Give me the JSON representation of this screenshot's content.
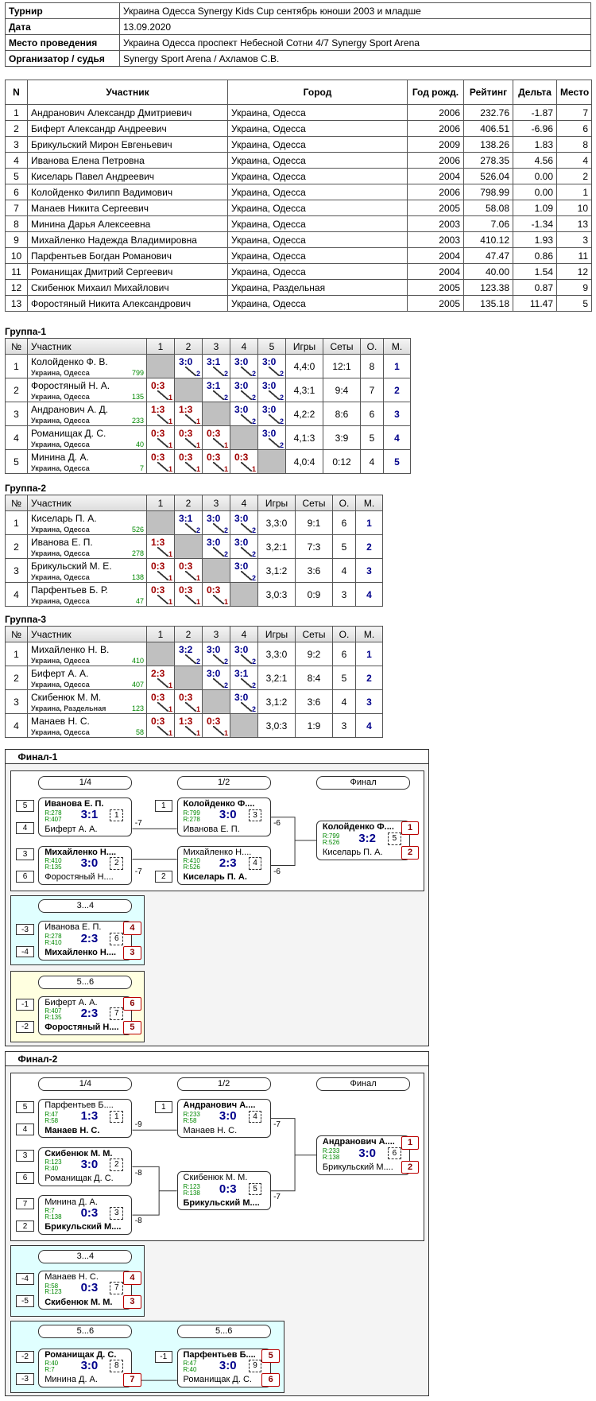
{
  "info": [
    [
      "Турнир",
      "Украина Одесса Synergy Kids Cup сентябрь юноши 2003 и младше"
    ],
    [
      "Дата",
      "13.09.2020"
    ],
    [
      "Место проведения",
      "Украина Одесса проспект Небесной Сотни 4/7 Synergy Sport Arena"
    ],
    [
      "Организатор / судья",
      "Synergy Sport Arena / Ахламов С.В."
    ]
  ],
  "participants": {
    "header": [
      "N",
      "Участник",
      "Город",
      "Год рожд.",
      "Рейтинг",
      "Дельта",
      "Место"
    ],
    "rows": [
      [
        "1",
        "Андранович Александр Дмитриевич",
        "Украина, Одесса",
        "2006",
        "232.76",
        "-1.87",
        "7"
      ],
      [
        "2",
        "Биферт Александр Андреевич",
        "Украина, Одесса",
        "2006",
        "406.51",
        "-6.96",
        "6"
      ],
      [
        "3",
        "Брикульский Мирон Евгеньевич",
        "Украина, Одесса",
        "2009",
        "138.26",
        "1.83",
        "8"
      ],
      [
        "4",
        "Иванова Елена Петровна",
        "Украина, Одесса",
        "2006",
        "278.35",
        "4.56",
        "4"
      ],
      [
        "5",
        "Киселарь Павел Андреевич",
        "Украина, Одесса",
        "2004",
        "526.04",
        "0.00",
        "2"
      ],
      [
        "6",
        "Колойденко Филипп Вадимович",
        "Украина, Одесса",
        "2006",
        "798.99",
        "0.00",
        "1"
      ],
      [
        "7",
        "Манаев Никита Сергеевич",
        "Украина, Одесса",
        "2005",
        "58.08",
        "1.09",
        "10"
      ],
      [
        "8",
        "Минина Дарья Алексеевна",
        "Украина, Одесса",
        "2003",
        "7.06",
        "-1.34",
        "13"
      ],
      [
        "9",
        "Михайленко Надежда Владимировна",
        "Украина, Одесса",
        "2003",
        "410.12",
        "1.93",
        "3"
      ],
      [
        "10",
        "Парфентьев Богдан Романович",
        "Украина, Одесса",
        "2004",
        "47.47",
        "0.86",
        "11"
      ],
      [
        "11",
        "Романищак Дмитрий Сергеевич",
        "Украина, Одесса",
        "2004",
        "40.00",
        "1.54",
        "12"
      ],
      [
        "12",
        "Скибенюк Михаил Михайлович",
        "Украина, Раздельная",
        "2005",
        "123.38",
        "0.87",
        "9"
      ],
      [
        "13",
        "Форостяный Никита Александрович",
        "Украина, Одесса",
        "2005",
        "135.18",
        "11.47",
        "5"
      ]
    ]
  },
  "groups": [
    {
      "title": "Группа-1",
      "header": [
        "№",
        "Участник",
        "1",
        "2",
        "3",
        "4",
        "5",
        "Игры",
        "Сеты",
        "О.",
        "М."
      ],
      "rows": [
        {
          "n": "1",
          "name": "Колойденко Ф. В.",
          "city": "Украина, Одесса",
          "rating": "799",
          "cells": [
            null,
            {
              "score": "3:0",
              "pts": "2",
              "win": true
            },
            {
              "score": "3:1",
              "pts": "2",
              "win": true
            },
            {
              "score": "3:0",
              "pts": "2",
              "win": true
            },
            {
              "score": "3:0",
              "pts": "2",
              "win": true
            }
          ],
          "games": "4,4:0",
          "sets": "12:1",
          "points": "8",
          "place": "1"
        },
        {
          "n": "2",
          "name": "Форостяный Н. А.",
          "city": "Украина, Одесса",
          "rating": "135",
          "cells": [
            {
              "score": "0:3",
              "pts": "1",
              "win": false
            },
            null,
            {
              "score": "3:1",
              "pts": "2",
              "win": true
            },
            {
              "score": "3:0",
              "pts": "2",
              "win": true
            },
            {
              "score": "3:0",
              "pts": "2",
              "win": true
            }
          ],
          "games": "4,3:1",
          "sets": "9:4",
          "points": "7",
          "place": "2"
        },
        {
          "n": "3",
          "name": "Андранович А. Д.",
          "city": "Украина, Одесса",
          "rating": "233",
          "cells": [
            {
              "score": "1:3",
              "pts": "1",
              "win": false
            },
            {
              "score": "1:3",
              "pts": "1",
              "win": false
            },
            null,
            {
              "score": "3:0",
              "pts": "2",
              "win": true
            },
            {
              "score": "3:0",
              "pts": "2",
              "win": true
            }
          ],
          "games": "4,2:2",
          "sets": "8:6",
          "points": "6",
          "place": "3"
        },
        {
          "n": "4",
          "name": "Романищак Д. С.",
          "city": "Украина, Одесса",
          "rating": "40",
          "cells": [
            {
              "score": "0:3",
              "pts": "1",
              "win": false
            },
            {
              "score": "0:3",
              "pts": "1",
              "win": false
            },
            {
              "score": "0:3",
              "pts": "1",
              "win": false
            },
            null,
            {
              "score": "3:0",
              "pts": "2",
              "win": true
            }
          ],
          "games": "4,1:3",
          "sets": "3:9",
          "points": "5",
          "place": "4"
        },
        {
          "n": "5",
          "name": "Минина Д. А.",
          "city": "Украина, Одесса",
          "rating": "7",
          "cells": [
            {
              "score": "0:3",
              "pts": "1",
              "win": false
            },
            {
              "score": "0:3",
              "pts": "1",
              "win": false
            },
            {
              "score": "0:3",
              "pts": "1",
              "win": false
            },
            {
              "score": "0:3",
              "pts": "1",
              "win": false
            },
            null
          ],
          "games": "4,0:4",
          "sets": "0:12",
          "points": "4",
          "place": "5"
        }
      ]
    },
    {
      "title": "Группа-2",
      "header": [
        "№",
        "Участник",
        "1",
        "2",
        "3",
        "4",
        "Игры",
        "Сеты",
        "О.",
        "М."
      ],
      "rows": [
        {
          "n": "1",
          "name": "Киселарь П. А.",
          "city": "Украина, Одесса",
          "rating": "526",
          "cells": [
            null,
            {
              "score": "3:1",
              "pts": "2",
              "win": true
            },
            {
              "score": "3:0",
              "pts": "2",
              "win": true
            },
            {
              "score": "3:0",
              "pts": "2",
              "win": true
            }
          ],
          "games": "3,3:0",
          "sets": "9:1",
          "points": "6",
          "place": "1"
        },
        {
          "n": "2",
          "name": "Иванова Е. П.",
          "city": "Украина, Одесса",
          "rating": "278",
          "cells": [
            {
              "score": "1:3",
              "pts": "1",
              "win": false
            },
            null,
            {
              "score": "3:0",
              "pts": "2",
              "win": true
            },
            {
              "score": "3:0",
              "pts": "2",
              "win": true
            }
          ],
          "games": "3,2:1",
          "sets": "7:3",
          "points": "5",
          "place": "2"
        },
        {
          "n": "3",
          "name": "Брикульский М. Е.",
          "city": "Украина, Одесса",
          "rating": "138",
          "cells": [
            {
              "score": "0:3",
              "pts": "1",
              "win": false
            },
            {
              "score": "0:3",
              "pts": "1",
              "win": false
            },
            null,
            {
              "score": "3:0",
              "pts": "2",
              "win": true
            }
          ],
          "games": "3,1:2",
          "sets": "3:6",
          "points": "4",
          "place": "3"
        },
        {
          "n": "4",
          "name": "Парфентьев Б. Р.",
          "city": "Украина, Одесса",
          "rating": "47",
          "cells": [
            {
              "score": "0:3",
              "pts": "1",
              "win": false
            },
            {
              "score": "0:3",
              "pts": "1",
              "win": false
            },
            {
              "score": "0:3",
              "pts": "1",
              "win": false
            },
            null
          ],
          "games": "3,0:3",
          "sets": "0:9",
          "points": "3",
          "place": "4"
        }
      ]
    },
    {
      "title": "Группа-3",
      "header": [
        "№",
        "Участник",
        "1",
        "2",
        "3",
        "4",
        "Игры",
        "Сеты",
        "О.",
        "М."
      ],
      "rows": [
        {
          "n": "1",
          "name": "Михайленко Н. В.",
          "city": "Украина, Одесса",
          "rating": "410",
          "cells": [
            null,
            {
              "score": "3:2",
              "pts": "2",
              "win": true
            },
            {
              "score": "3:0",
              "pts": "2",
              "win": true
            },
            {
              "score": "3:0",
              "pts": "2",
              "win": true
            }
          ],
          "games": "3,3:0",
          "sets": "9:2",
          "points": "6",
          "place": "1"
        },
        {
          "n": "2",
          "name": "Биферт А. А.",
          "city": "Украина, Одесса",
          "rating": "407",
          "cells": [
            {
              "score": "2:3",
              "pts": "1",
              "win": false
            },
            null,
            {
              "score": "3:0",
              "pts": "2",
              "win": true
            },
            {
              "score": "3:1",
              "pts": "2",
              "win": true
            }
          ],
          "games": "3,2:1",
          "sets": "8:4",
          "points": "5",
          "place": "2"
        },
        {
          "n": "3",
          "name": "Скибенюк М. М.",
          "city": "Украина, Раздельная",
          "rating": "123",
          "cells": [
            {
              "score": "0:3",
              "pts": "1",
              "win": false
            },
            {
              "score": "0:3",
              "pts": "1",
              "win": false
            },
            null,
            {
              "score": "3:0",
              "pts": "2",
              "win": true
            }
          ],
          "games": "3,1:2",
          "sets": "3:6",
          "points": "4",
          "place": "3"
        },
        {
          "n": "4",
          "name": "Манаев Н. С.",
          "city": "Украина, Одесса",
          "rating": "58",
          "cells": [
            {
              "score": "0:3",
              "pts": "1",
              "win": false
            },
            {
              "score": "1:3",
              "pts": "1",
              "win": false
            },
            {
              "score": "0:3",
              "pts": "1",
              "win": false
            },
            null
          ],
          "games": "3,0:3",
          "sets": "1:9",
          "points": "3",
          "place": "4"
        }
      ]
    }
  ],
  "finals": [
    {
      "title": "Финал-1",
      "panels": [
        {
          "rounds": [
            "1/4",
            "1/2",
            "Финал"
          ],
          "matches": [
            {
              "num": "1",
              "seed1": "5",
              "seed2": "4",
              "p1": {
                "name": "Иванова Е. П.",
                "rating": "R:278"
              },
              "p2": {
                "name": "Биферт А. А.",
                "rating": "R:407"
              },
              "score": "3:1",
              "winner": 1,
              "next": "-7"
            },
            {
              "num": "2",
              "seed1": "3",
              "seed2": "6",
              "p1": {
                "name": "Михайленко Н....",
                "rating": "R:410"
              },
              "p2": {
                "name": "Форостяный Н....",
                "rating": "R:135"
              },
              "score": "3:0",
              "winner": 1,
              "next": "-7"
            },
            {
              "num": "3",
              "seed1": "1",
              "p1": {
                "name": "Колойденко Ф....",
                "rating": "R:799"
              },
              "p2": {
                "name": "Иванова Е. П.",
                "rating": "R:278"
              },
              "score": "3:0",
              "winner": 1,
              "next": "-6"
            },
            {
              "num": "4",
              "seed2": "2",
              "p1": {
                "name": "Михайленко Н....",
                "rating": "R:410"
              },
              "p2": {
                "name": "Киселарь П. А.",
                "rating": "R:526"
              },
              "score": "2:3",
              "winner": 2,
              "next": "-6"
            },
            {
              "num": "5",
              "p1": {
                "name": "Колойденко Ф....",
                "rating": "R:799"
              },
              "p2": {
                "name": "Киселарь П. А.",
                "rating": "R:526"
              },
              "score": "3:2",
              "winner": 1,
              "place1": "1",
              "place2": "2"
            }
          ]
        },
        {
          "rounds": [
            "3...4"
          ],
          "matches": [
            {
              "num": "6",
              "seed1": "-3",
              "seed2": "-4",
              "p1": {
                "name": "Иванова Е. П.",
                "rating": "R:278"
              },
              "p2": {
                "name": "Михайленко Н....",
                "rating": "R:410"
              },
              "score": "2:3",
              "winner": 2,
              "place1": "4",
              "place2": "3"
            }
          ]
        },
        {
          "rounds": [
            "5...6"
          ],
          "matches": [
            {
              "num": "7",
              "seed1": "-1",
              "seed2": "-2",
              "p1": {
                "name": "Биферт А. А.",
                "rating": "R:407"
              },
              "p2": {
                "name": "Форостяный Н....",
                "rating": "R:135"
              },
              "score": "2:3",
              "winner": 2,
              "place1": "6",
              "place2": "5"
            }
          ]
        }
      ]
    },
    {
      "title": "Финал-2",
      "panels": [
        {
          "rounds": [
            "1/4",
            "1/2",
            "Финал"
          ],
          "matches": [
            {
              "num": "1",
              "seed1": "5",
              "seed2": "4",
              "p1": {
                "name": "Парфентьев Б....",
                "rating": "R:47"
              },
              "p2": {
                "name": "Манаев Н. С.",
                "rating": "R:58"
              },
              "score": "1:3",
              "winner": 2,
              "next": "-9"
            },
            {
              "num": "2",
              "seed1": "3",
              "seed2": "6",
              "p1": {
                "name": "Скибенюк М. М.",
                "rating": "R:123"
              },
              "p2": {
                "name": "Романищак Д. С.",
                "rating": "R:40"
              },
              "score": "3:0",
              "winner": 1,
              "next": "-8"
            },
            {
              "num": "3",
              "seed1": "7",
              "seed2": "2",
              "p1": {
                "name": "Минина Д. А.",
                "rating": "R:7"
              },
              "p2": {
                "name": "Брикульский М....",
                "rating": "R:138"
              },
              "score": "0:3",
              "winner": 2,
              "next": "-8"
            },
            {
              "num": "4",
              "seed1": "1",
              "p1": {
                "name": "Андранович А....",
                "rating": "R:233"
              },
              "p2": {
                "name": "Манаев Н. С.",
                "rating": "R:58"
              },
              "score": "3:0",
              "winner": 1,
              "next": "-7"
            },
            {
              "num": "5",
              "p1": {
                "name": "Скибенюк М. М.",
                "rating": "R:123"
              },
              "p2": {
                "name": "Брикульский М....",
                "rating": "R:138"
              },
              "score": "0:3",
              "winner": 2,
              "next": "-7"
            },
            {
              "num": "6",
              "p1": {
                "name": "Андранович А....",
                "rating": "R:233"
              },
              "p2": {
                "name": "Брикульский М....",
                "rating": "R:138"
              },
              "score": "3:0",
              "winner": 1,
              "place1": "1",
              "place2": "2"
            }
          ]
        },
        {
          "rounds": [
            "3...4"
          ],
          "matches": [
            {
              "num": "7",
              "seed1": "-4",
              "seed2": "-5",
              "p1": {
                "name": "Манаев Н. С.",
                "rating": "R:58"
              },
              "p2": {
                "name": "Скибенюк М. М.",
                "rating": "R:123"
              },
              "score": "0:3",
              "winner": 2,
              "place1": "4",
              "place2": "3"
            }
          ]
        },
        {
          "rounds": [
            "5...6",
            "5...6"
          ],
          "matches": [
            {
              "num": "8",
              "seed1": "-2",
              "seed2": "-3",
              "p1": {
                "name": "Романищак Д. С.",
                "rating": "R:40"
              },
              "p2": {
                "name": "Минина Д. А.",
                "rating": "R:7"
              },
              "score": "3:0",
              "winner": 1,
              "place2": "7"
            },
            {
              "num": "9",
              "seed1": "-1",
              "p1": {
                "name": "Парфентьев Б....",
                "rating": "R:47"
              },
              "p2": {
                "name": "Романищак Д. С.",
                "rating": "R:40"
              },
              "score": "3:0",
              "winner": 1,
              "place1": "5",
              "place2": "6"
            }
          ]
        }
      ]
    }
  ]
}
